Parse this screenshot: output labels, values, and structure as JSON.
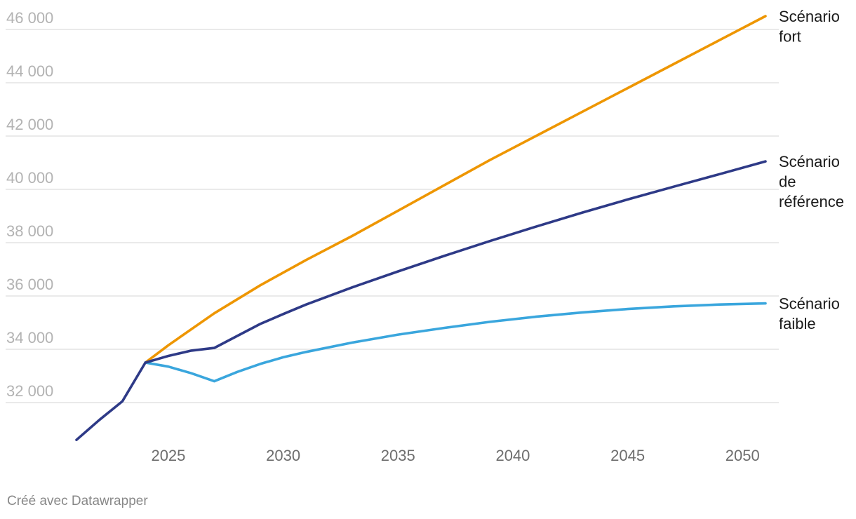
{
  "footer": {
    "credit": "Créé avec Datawrapper"
  },
  "chart_data": {
    "type": "line",
    "title": "",
    "xlabel": "",
    "ylabel": "",
    "xlim": [
      2021,
      2051
    ],
    "ylim": [
      30000,
      46600
    ],
    "grid": true,
    "legend": "direct labels at line ends (right)",
    "y_ticks": [
      32000,
      34000,
      36000,
      38000,
      40000,
      42000,
      44000,
      46000
    ],
    "y_tick_labels": [
      "32 000",
      "34 000",
      "36 000",
      "38 000",
      "40 000",
      "42 000",
      "44 000",
      "46 000"
    ],
    "x_ticks": [
      2025,
      2030,
      2035,
      2040,
      2045,
      2050
    ],
    "x_tick_labels": [
      "2025",
      "2030",
      "2035",
      "2040",
      "2045",
      "2050"
    ],
    "series": [
      {
        "name": "Scénario fort",
        "label_lines": [
          "Scénario",
          "fort"
        ],
        "color": "#ee9600",
        "x": [
          2024,
          2025,
          2027,
          2029,
          2031,
          2033,
          2035,
          2037,
          2039,
          2041,
          2043,
          2045,
          2047,
          2049,
          2051
        ],
        "y": [
          33500,
          34150,
          35350,
          36400,
          37350,
          38250,
          39200,
          40150,
          41100,
          42000,
          42900,
          43800,
          44700,
          45600,
          46500
        ]
      },
      {
        "name": "Scénario de référence",
        "label_lines": [
          "Scénario",
          "de",
          "référence"
        ],
        "color": "#2e3a87",
        "x": [
          2021,
          2022,
          2023,
          2024,
          2025,
          2026,
          2027,
          2028,
          2029,
          2030,
          2031,
          2033,
          2035,
          2037,
          2039,
          2041,
          2043,
          2045,
          2047,
          2049,
          2051
        ],
        "y": [
          30600,
          31350,
          32050,
          33500,
          33750,
          33950,
          34050,
          34500,
          34950,
          35320,
          35680,
          36320,
          36920,
          37500,
          38060,
          38600,
          39120,
          39620,
          40100,
          40570,
          41050
        ]
      },
      {
        "name": "Scénario faible",
        "label_lines": [
          "Scénario",
          "faible"
        ],
        "color": "#3aa6dd",
        "x": [
          2024,
          2025,
          2026,
          2027,
          2028,
          2029,
          2030,
          2031,
          2033,
          2035,
          2037,
          2039,
          2041,
          2043,
          2045,
          2047,
          2049,
          2051
        ],
        "y": [
          33500,
          33350,
          33100,
          32800,
          33150,
          33450,
          33700,
          33900,
          34250,
          34550,
          34800,
          35030,
          35220,
          35380,
          35510,
          35610,
          35680,
          35720
        ]
      }
    ]
  }
}
